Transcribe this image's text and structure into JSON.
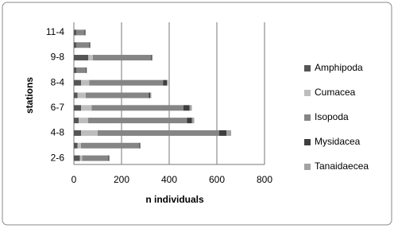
{
  "chart_data": {
    "type": "stacked_barh",
    "x_label": "n individuals",
    "y_label": "stations",
    "categories": [
      "2-6",
      null,
      "4-8",
      null,
      "6-7",
      null,
      "8-4",
      null,
      "9-8",
      null,
      "11-4"
    ],
    "series": [
      {
        "name": "Amphipoda",
        "color": "#555555",
        "values": [
          25,
          15,
          30,
          20,
          30,
          15,
          30,
          10,
          60,
          10,
          10
        ]
      },
      {
        "name": "Cumacea",
        "color": "#bdbdbd",
        "values": [
          10,
          15,
          70,
          40,
          45,
          35,
          35,
          0,
          20,
          0,
          0
        ]
      },
      {
        "name": "Isopoda",
        "color": "#858585",
        "values": [
          110,
          245,
          510,
          415,
          385,
          265,
          310,
          40,
          245,
          55,
          35
        ]
      },
      {
        "name": "Mysidacea",
        "color": "#3e3e3e",
        "values": [
          3,
          3,
          30,
          20,
          25,
          5,
          15,
          3,
          3,
          3,
          3
        ]
      },
      {
        "name": "Tanaidaecea",
        "color": "#a3a3a3",
        "values": [
          2,
          2,
          20,
          10,
          10,
          5,
          5,
          2,
          2,
          2,
          2
        ]
      }
    ],
    "xlim": [
      0,
      800
    ],
    "xticks": [
      0,
      200,
      400,
      600,
      800
    ],
    "grid": true,
    "legend": "right"
  }
}
